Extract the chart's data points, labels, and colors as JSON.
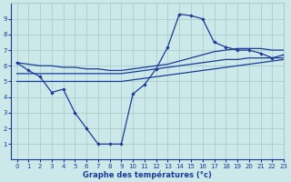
{
  "xlabel": "Graphe des températures (°c)",
  "bg_color": "#cce8e8",
  "grid_color": "#a8cece",
  "line_color": "#1a3a9a",
  "hours": [
    0,
    1,
    2,
    3,
    4,
    5,
    6,
    7,
    8,
    9,
    10,
    11,
    12,
    13,
    14,
    15,
    16,
    17,
    18,
    19,
    20,
    21,
    22,
    23
  ],
  "series": {
    "current": [
      6.2,
      5.7,
      5.3,
      4.3,
      4.5,
      3.0,
      2.0,
      1.0,
      1.0,
      1.0,
      4.2,
      4.8,
      5.8,
      7.2,
      9.3,
      9.2,
      9.0,
      7.5,
      7.2,
      7.0,
      7.0,
      6.8,
      6.5,
      6.7
    ],
    "tmin_line": [
      5.0,
      5.0,
      5.0,
      5.0,
      5.0,
      5.0,
      5.0,
      5.0,
      5.0,
      5.0,
      5.1,
      5.2,
      5.3,
      5.4,
      5.5,
      5.6,
      5.7,
      5.8,
      5.9,
      6.0,
      6.1,
      6.2,
      6.3,
      6.4
    ],
    "tavg_line": [
      5.5,
      5.5,
      5.5,
      5.5,
      5.5,
      5.5,
      5.5,
      5.5,
      5.5,
      5.5,
      5.6,
      5.7,
      5.8,
      5.9,
      6.0,
      6.1,
      6.2,
      6.3,
      6.4,
      6.4,
      6.5,
      6.5,
      6.5,
      6.5
    ],
    "tmax_line": [
      6.2,
      6.1,
      6.0,
      6.0,
      5.9,
      5.9,
      5.8,
      5.8,
      5.7,
      5.7,
      5.8,
      5.9,
      6.0,
      6.1,
      6.3,
      6.5,
      6.7,
      6.9,
      7.0,
      7.1,
      7.1,
      7.1,
      7.0,
      7.0
    ]
  },
  "ylim": [
    0,
    10
  ],
  "xlim": [
    -0.5,
    23
  ],
  "yticks": [
    1,
    2,
    3,
    4,
    5,
    6,
    7,
    8,
    9
  ],
  "xticks": [
    0,
    1,
    2,
    3,
    4,
    5,
    6,
    7,
    8,
    9,
    10,
    11,
    12,
    13,
    14,
    15,
    16,
    17,
    18,
    19,
    20,
    21,
    22,
    23
  ],
  "xlabel_fontsize": 6.0,
  "tick_fontsize": 5.0,
  "lw": 0.9,
  "ms": 2.2
}
